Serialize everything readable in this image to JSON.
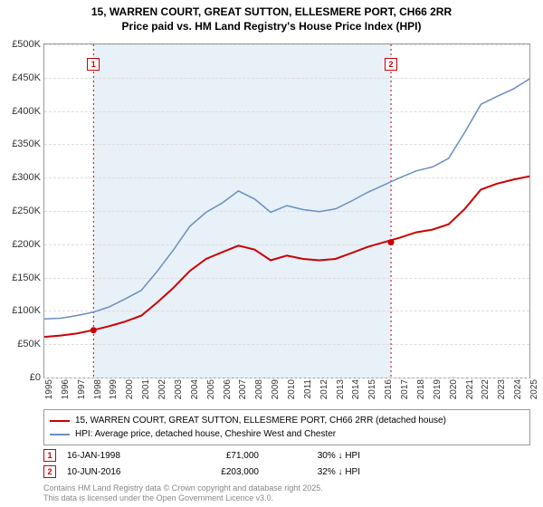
{
  "title": {
    "line1": "15, WARREN COURT, GREAT SUTTON, ELLESMERE PORT, CH66 2RR",
    "line2": "Price paid vs. HM Land Registry's House Price Index (HPI)"
  },
  "chart": {
    "type": "line",
    "x_min": 1995,
    "x_max": 2025,
    "x_ticks": [
      1995,
      1996,
      1997,
      1998,
      1999,
      2000,
      2001,
      2002,
      2003,
      2004,
      2005,
      2006,
      2007,
      2008,
      2009,
      2010,
      2011,
      2012,
      2013,
      2014,
      2015,
      2016,
      2017,
      2018,
      2019,
      2020,
      2021,
      2022,
      2023,
      2024,
      2025
    ],
    "y_min": 0,
    "y_max": 500000,
    "y_ticks": [
      0,
      50000,
      100000,
      150000,
      200000,
      250000,
      300000,
      350000,
      400000,
      450000,
      500000
    ],
    "y_tick_labels": [
      "£0",
      "£50K",
      "£100K",
      "£150K",
      "£200K",
      "£250K",
      "£300K",
      "£350K",
      "£400K",
      "£450K",
      "£500K"
    ],
    "background_color": "#ffffff",
    "grid_color": "#dddddd",
    "highlight_band": {
      "x_start": 1998.04,
      "x_end": 2016.44,
      "fill": "#c9ddef"
    },
    "series": [
      {
        "name": "price_paid",
        "color": "#cc0000",
        "width": 2,
        "legend": "15, WARREN COURT, GREAT SUTTON, ELLESMERE PORT, CH66 2RR (detached house)",
        "points": [
          [
            1995,
            61000
          ],
          [
            1996,
            63000
          ],
          [
            1997,
            66000
          ],
          [
            1998,
            71000
          ],
          [
            1999,
            77000
          ],
          [
            2000,
            84000
          ],
          [
            2001,
            93000
          ],
          [
            2002,
            113000
          ],
          [
            2003,
            135000
          ],
          [
            2004,
            160000
          ],
          [
            2005,
            178000
          ],
          [
            2006,
            188000
          ],
          [
            2007,
            198000
          ],
          [
            2008,
            192000
          ],
          [
            2009,
            176000
          ],
          [
            2010,
            183000
          ],
          [
            2011,
            178000
          ],
          [
            2012,
            176000
          ],
          [
            2013,
            178000
          ],
          [
            2014,
            187000
          ],
          [
            2015,
            196000
          ],
          [
            2016,
            203000
          ],
          [
            2017,
            210000
          ],
          [
            2018,
            218000
          ],
          [
            2019,
            222000
          ],
          [
            2020,
            230000
          ],
          [
            2021,
            253000
          ],
          [
            2022,
            282000
          ],
          [
            2023,
            291000
          ],
          [
            2024,
            297000
          ],
          [
            2025,
            302000
          ]
        ]
      },
      {
        "name": "hpi",
        "color": "#6a8fc0",
        "width": 1.5,
        "legend": "HPI: Average price, detached house, Cheshire West and Chester",
        "points": [
          [
            1995,
            88000
          ],
          [
            1996,
            89000
          ],
          [
            1997,
            93000
          ],
          [
            1998,
            98000
          ],
          [
            1999,
            106000
          ],
          [
            2000,
            118000
          ],
          [
            2001,
            131000
          ],
          [
            2002,
            160000
          ],
          [
            2003,
            192000
          ],
          [
            2004,
            227000
          ],
          [
            2005,
            248000
          ],
          [
            2006,
            262000
          ],
          [
            2007,
            280000
          ],
          [
            2008,
            268000
          ],
          [
            2009,
            248000
          ],
          [
            2010,
            258000
          ],
          [
            2011,
            252000
          ],
          [
            2012,
            249000
          ],
          [
            2013,
            253000
          ],
          [
            2014,
            265000
          ],
          [
            2015,
            278000
          ],
          [
            2016,
            289000
          ],
          [
            2017,
            300000
          ],
          [
            2018,
            310000
          ],
          [
            2019,
            316000
          ],
          [
            2020,
            329000
          ],
          [
            2021,
            368000
          ],
          [
            2022,
            410000
          ],
          [
            2023,
            422000
          ],
          [
            2024,
            433000
          ],
          [
            2025,
            448000
          ]
        ]
      }
    ],
    "transaction_markers": [
      {
        "n": "1",
        "x": 1998.04,
        "y_box": 470000,
        "dot_y": 71000
      },
      {
        "n": "2",
        "x": 2016.44,
        "y_box": 470000,
        "dot_y": 203000
      }
    ],
    "marker_line_color": "#cc0000",
    "marker_dot_color": "#cc0000"
  },
  "transactions": [
    {
      "n": "1",
      "date": "16-JAN-1998",
      "price": "£71,000",
      "delta": "30%",
      "delta_suffix": "HPI"
    },
    {
      "n": "2",
      "date": "10-JUN-2016",
      "price": "£203,000",
      "delta": "32%",
      "delta_suffix": "HPI"
    }
  ],
  "footer": {
    "line1": "Contains HM Land Registry data © Crown copyright and database right 2025.",
    "line2": "This data is licensed under the Open Government Licence v3.0."
  }
}
